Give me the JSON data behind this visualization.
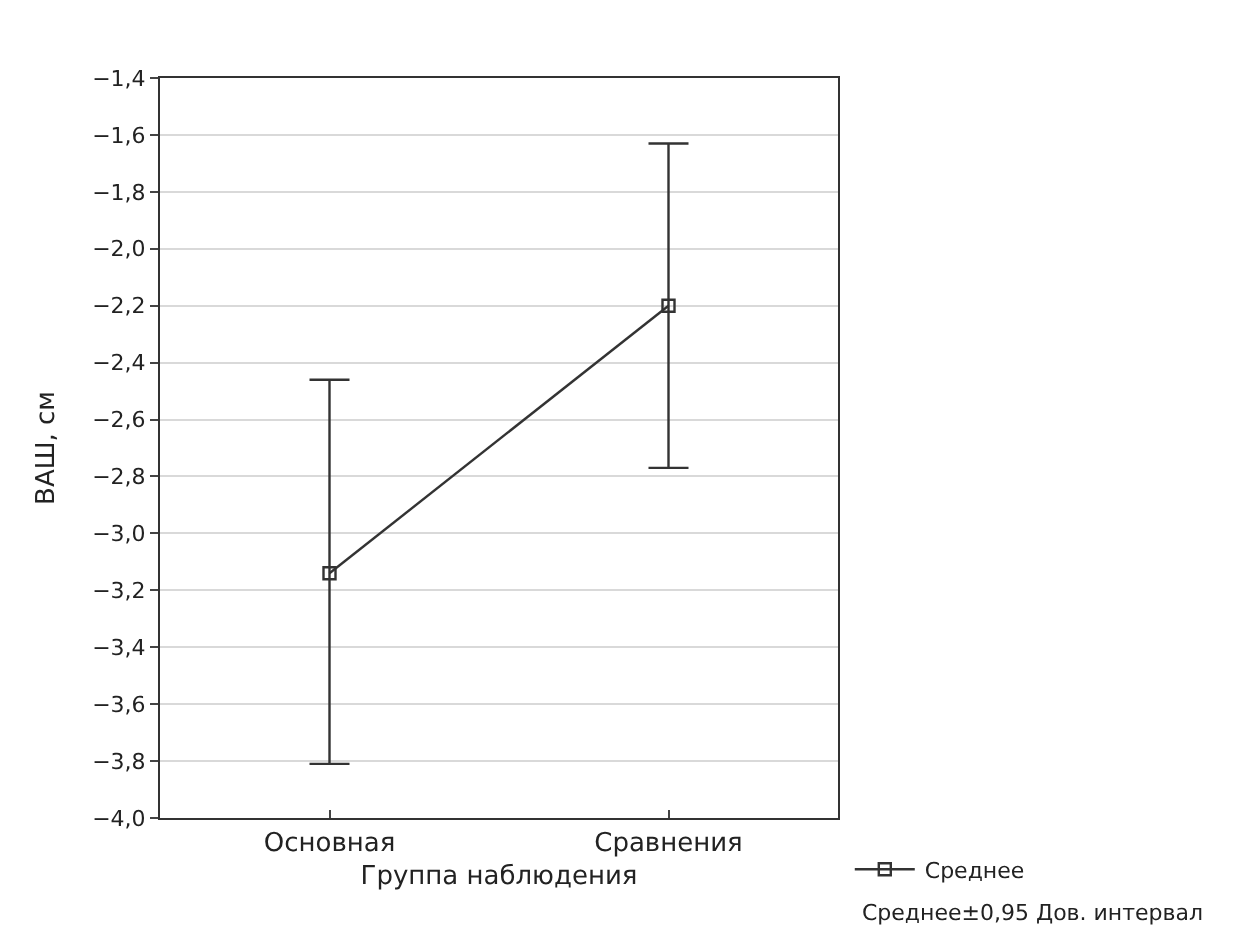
{
  "chart_data": {
    "type": "line",
    "xlabel": "Группа наблюдения",
    "ylabel": "ВАШ, см",
    "categories": [
      "Основная",
      "Сравнения"
    ],
    "series": [
      {
        "name": "Среднее",
        "color": "#333333",
        "values": [
          -3.14,
          -2.2
        ],
        "errors": [
          [
            -3.81,
            -2.46
          ],
          [
            -2.77,
            -1.63
          ]
        ]
      }
    ],
    "ylim": [
      -4.0,
      -1.4
    ],
    "yticks": [
      {
        "value": -4.0,
        "label": "−4,0"
      },
      {
        "value": -3.8,
        "label": "−3,8"
      },
      {
        "value": -3.6,
        "label": "−3,6"
      },
      {
        "value": -3.4,
        "label": "−3,4"
      },
      {
        "value": -3.2,
        "label": "−3,2"
      },
      {
        "value": -3.0,
        "label": "−3,0"
      },
      {
        "value": -2.8,
        "label": "−2,8"
      },
      {
        "value": -2.6,
        "label": "−2,6"
      },
      {
        "value": -2.4,
        "label": "−2,4"
      },
      {
        "value": -2.2,
        "label": "−2,2"
      },
      {
        "value": -2.0,
        "label": "−2,0"
      },
      {
        "value": -1.8,
        "label": "−1,8"
      },
      {
        "value": -1.6,
        "label": "−1,6"
      },
      {
        "value": -1.4,
        "label": "−1,4"
      }
    ],
    "grid": "y",
    "marker": "square",
    "line_style": "solid",
    "legend": "bottom right",
    "annotations": [
      "Среднее±0,95 Дов. интервал"
    ]
  }
}
